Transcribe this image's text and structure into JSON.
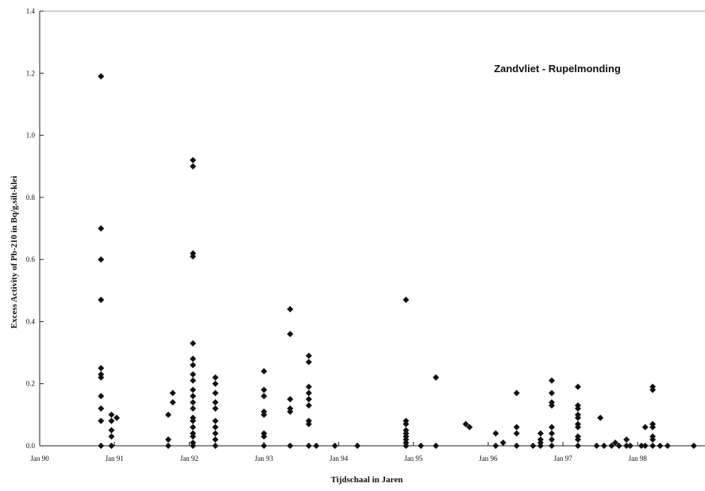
{
  "chart_data": {
    "type": "scatter",
    "title": "",
    "annotation": "Zandvliet - Rupelmonding",
    "xlabel": "Tijdschaal in Jaren",
    "ylabel": "Excess Activity of Pb-210 in Bq/g.silt-klei",
    "xlim": [
      1990.0,
      1998.9
    ],
    "ylim": [
      0,
      1.4
    ],
    "grid": false,
    "legend": "none",
    "x_ticks": [
      {
        "value": 1990.0,
        "label": "Jan 90"
      },
      {
        "value": 1991.0,
        "label": "Jan 91"
      },
      {
        "value": 1992.0,
        "label": "Jan 92"
      },
      {
        "value": 1993.0,
        "label": "Jan 93"
      },
      {
        "value": 1994.0,
        "label": "Jan 94"
      },
      {
        "value": 1995.0,
        "label": "Jan 95"
      },
      {
        "value": 1996.0,
        "label": "Jan 96"
      },
      {
        "value": 1997.0,
        "label": "Jan 97"
      },
      {
        "value": 1998.0,
        "label": "Jan 98"
      }
    ],
    "y_ticks": [
      {
        "value": 0.0,
        "label": "0.0"
      },
      {
        "value": 0.2,
        "label": "0.2"
      },
      {
        "value": 0.4,
        "label": "0.4"
      },
      {
        "value": 0.6,
        "label": "0.6"
      },
      {
        "value": 0.8,
        "label": "0.8"
      },
      {
        "value": 1.0,
        "label": "1.0"
      },
      {
        "value": 1.2,
        "label": "1.2"
      },
      {
        "value": 1.4,
        "label": "1.4"
      }
    ],
    "marker_color": "#111111",
    "series": [
      {
        "points": [
          {
            "x": 1990.82,
            "y": 1.19
          },
          {
            "x": 1990.82,
            "y": 0.7
          },
          {
            "x": 1990.82,
            "y": 0.6
          },
          {
            "x": 1990.82,
            "y": 0.47
          },
          {
            "x": 1990.82,
            "y": 0.25
          },
          {
            "x": 1990.82,
            "y": 0.23
          },
          {
            "x": 1990.82,
            "y": 0.22
          },
          {
            "x": 1990.82,
            "y": 0.16
          },
          {
            "x": 1990.82,
            "y": 0.12
          },
          {
            "x": 1990.82,
            "y": 0.08
          },
          {
            "x": 1990.82,
            "y": 0.0
          },
          {
            "x": 1990.96,
            "y": 0.1
          },
          {
            "x": 1990.96,
            "y": 0.08
          },
          {
            "x": 1990.96,
            "y": 0.05
          },
          {
            "x": 1990.96,
            "y": 0.03
          },
          {
            "x": 1990.96,
            "y": 0.0
          },
          {
            "x": 1991.03,
            "y": 0.09
          },
          {
            "x": 1991.72,
            "y": 0.02
          },
          {
            "x": 1991.72,
            "y": 0.1
          },
          {
            "x": 1991.72,
            "y": 0.0
          },
          {
            "x": 1991.78,
            "y": 0.17
          },
          {
            "x": 1991.78,
            "y": 0.14
          },
          {
            "x": 1992.05,
            "y": 0.92
          },
          {
            "x": 1992.05,
            "y": 0.9
          },
          {
            "x": 1992.05,
            "y": 0.62
          },
          {
            "x": 1992.05,
            "y": 0.61
          },
          {
            "x": 1992.05,
            "y": 0.33
          },
          {
            "x": 1992.05,
            "y": 0.28
          },
          {
            "x": 1992.05,
            "y": 0.26
          },
          {
            "x": 1992.05,
            "y": 0.23
          },
          {
            "x": 1992.05,
            "y": 0.21
          },
          {
            "x": 1992.05,
            "y": 0.18
          },
          {
            "x": 1992.05,
            "y": 0.16
          },
          {
            "x": 1992.05,
            "y": 0.14
          },
          {
            "x": 1992.05,
            "y": 0.12
          },
          {
            "x": 1992.05,
            "y": 0.09
          },
          {
            "x": 1992.05,
            "y": 0.08
          },
          {
            "x": 1992.05,
            "y": 0.06
          },
          {
            "x": 1992.05,
            "y": 0.04
          },
          {
            "x": 1992.05,
            "y": 0.03
          },
          {
            "x": 1992.05,
            "y": 0.01
          },
          {
            "x": 1992.05,
            "y": 0.0
          },
          {
            "x": 1992.35,
            "y": 0.22
          },
          {
            "x": 1992.35,
            "y": 0.2
          },
          {
            "x": 1992.35,
            "y": 0.17
          },
          {
            "x": 1992.35,
            "y": 0.14
          },
          {
            "x": 1992.35,
            "y": 0.12
          },
          {
            "x": 1992.35,
            "y": 0.08
          },
          {
            "x": 1992.35,
            "y": 0.06
          },
          {
            "x": 1992.35,
            "y": 0.04
          },
          {
            "x": 1992.35,
            "y": 0.02
          },
          {
            "x": 1992.35,
            "y": 0.0
          },
          {
            "x": 1993.0,
            "y": 0.24
          },
          {
            "x": 1993.0,
            "y": 0.18
          },
          {
            "x": 1993.0,
            "y": 0.16
          },
          {
            "x": 1993.0,
            "y": 0.11
          },
          {
            "x": 1993.0,
            "y": 0.1
          },
          {
            "x": 1993.0,
            "y": 0.04
          },
          {
            "x": 1993.0,
            "y": 0.03
          },
          {
            "x": 1993.0,
            "y": 0.0
          },
          {
            "x": 1993.35,
            "y": 0.44
          },
          {
            "x": 1993.35,
            "y": 0.36
          },
          {
            "x": 1993.35,
            "y": 0.15
          },
          {
            "x": 1993.35,
            "y": 0.12
          },
          {
            "x": 1993.35,
            "y": 0.11
          },
          {
            "x": 1993.35,
            "y": 0.0
          },
          {
            "x": 1993.6,
            "y": 0.29
          },
          {
            "x": 1993.6,
            "y": 0.27
          },
          {
            "x": 1993.6,
            "y": 0.19
          },
          {
            "x": 1993.6,
            "y": 0.17
          },
          {
            "x": 1993.6,
            "y": 0.15
          },
          {
            "x": 1993.6,
            "y": 0.13
          },
          {
            "x": 1993.6,
            "y": 0.08
          },
          {
            "x": 1993.6,
            "y": 0.07
          },
          {
            "x": 1993.6,
            "y": 0.0
          },
          {
            "x": 1993.7,
            "y": 0.0
          },
          {
            "x": 1993.95,
            "y": 0.0
          },
          {
            "x": 1994.25,
            "y": 0.0
          },
          {
            "x": 1994.9,
            "y": 0.47
          },
          {
            "x": 1994.9,
            "y": 0.08
          },
          {
            "x": 1994.9,
            "y": 0.07
          },
          {
            "x": 1994.9,
            "y": 0.05
          },
          {
            "x": 1994.9,
            "y": 0.04
          },
          {
            "x": 1994.9,
            "y": 0.03
          },
          {
            "x": 1994.9,
            "y": 0.02
          },
          {
            "x": 1994.9,
            "y": 0.01
          },
          {
            "x": 1994.9,
            "y": 0.0
          },
          {
            "x": 1995.1,
            "y": 0.0
          },
          {
            "x": 1995.3,
            "y": 0.22
          },
          {
            "x": 1995.3,
            "y": 0.0
          },
          {
            "x": 1995.7,
            "y": 0.07
          },
          {
            "x": 1995.75,
            "y": 0.06
          },
          {
            "x": 1996.1,
            "y": 0.04
          },
          {
            "x": 1996.1,
            "y": 0.0
          },
          {
            "x": 1996.2,
            "y": 0.01
          },
          {
            "x": 1996.38,
            "y": 0.17
          },
          {
            "x": 1996.38,
            "y": 0.06
          },
          {
            "x": 1996.38,
            "y": 0.04
          },
          {
            "x": 1996.38,
            "y": 0.0
          },
          {
            "x": 1996.6,
            "y": 0.0
          },
          {
            "x": 1996.7,
            "y": 0.04
          },
          {
            "x": 1996.7,
            "y": 0.02
          },
          {
            "x": 1996.7,
            "y": 0.01
          },
          {
            "x": 1996.7,
            "y": 0.0
          },
          {
            "x": 1996.85,
            "y": 0.21
          },
          {
            "x": 1996.85,
            "y": 0.17
          },
          {
            "x": 1996.85,
            "y": 0.14
          },
          {
            "x": 1996.85,
            "y": 0.13
          },
          {
            "x": 1996.85,
            "y": 0.06
          },
          {
            "x": 1996.85,
            "y": 0.04
          },
          {
            "x": 1996.85,
            "y": 0.02
          },
          {
            "x": 1996.85,
            "y": 0.0
          },
          {
            "x": 1997.2,
            "y": 0.19
          },
          {
            "x": 1997.2,
            "y": 0.13
          },
          {
            "x": 1997.2,
            "y": 0.12
          },
          {
            "x": 1997.2,
            "y": 0.1
          },
          {
            "x": 1997.2,
            "y": 0.09
          },
          {
            "x": 1997.2,
            "y": 0.07
          },
          {
            "x": 1997.2,
            "y": 0.06
          },
          {
            "x": 1997.2,
            "y": 0.03
          },
          {
            "x": 1997.2,
            "y": 0.02
          },
          {
            "x": 1997.2,
            "y": 0.0
          },
          {
            "x": 1997.5,
            "y": 0.09
          },
          {
            "x": 1997.45,
            "y": 0.0
          },
          {
            "x": 1997.55,
            "y": 0.0
          },
          {
            "x": 1997.65,
            "y": 0.0
          },
          {
            "x": 1997.7,
            "y": 0.01
          },
          {
            "x": 1997.75,
            "y": 0.0
          },
          {
            "x": 1997.85,
            "y": 0.02
          },
          {
            "x": 1997.85,
            "y": 0.0
          },
          {
            "x": 1997.9,
            "y": 0.0
          },
          {
            "x": 1998.1,
            "y": 0.06
          },
          {
            "x": 1998.1,
            "y": 0.0
          },
          {
            "x": 1998.2,
            "y": 0.19
          },
          {
            "x": 1998.2,
            "y": 0.18
          },
          {
            "x": 1998.2,
            "y": 0.07
          },
          {
            "x": 1998.2,
            "y": 0.06
          },
          {
            "x": 1998.2,
            "y": 0.03
          },
          {
            "x": 1998.2,
            "y": 0.02
          },
          {
            "x": 1998.2,
            "y": 0.0
          },
          {
            "x": 1998.05,
            "y": 0.0
          },
          {
            "x": 1998.3,
            "y": 0.0
          },
          {
            "x": 1998.4,
            "y": 0.0
          },
          {
            "x": 1998.75,
            "y": 0.0
          }
        ]
      }
    ]
  }
}
